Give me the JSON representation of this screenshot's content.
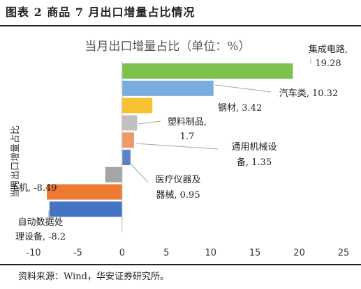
{
  "figure_title": "图表 2  商品 7 月出口增量占比情况",
  "source": "资料来源：Wind，华安证券研究所。",
  "chart_data": {
    "type": "bar",
    "orientation": "horizontal",
    "title": "当月出口增量占比（单位：%）",
    "ylabel": "当月出口增量占比",
    "xlabel": "",
    "xlim": [
      -10,
      25
    ],
    "xticks": [
      "-10",
      "-5",
      "0",
      "5",
      "10",
      "15",
      "20",
      "25"
    ],
    "grid": false,
    "legend": "none",
    "bars": [
      {
        "label_lines": [
          "集成电路,",
          "19.28"
        ],
        "value": 19.28,
        "color": "#7dc14f"
      },
      {
        "label_lines": [
          "汽车类, 10.32"
        ],
        "value": 10.32,
        "color": "#79acdf"
      },
      {
        "label_lines": [
          "钢材, 3.42"
        ],
        "value": 3.42,
        "color": "#f6c232"
      },
      {
        "label_lines": [
          "塑料制品,",
          "1.7"
        ],
        "value": 1.7,
        "color": "#c0c0c0"
      },
      {
        "label_lines": [
          "通用机械设",
          "备, 1.35"
        ],
        "value": 1.35,
        "color": "#ee9a67"
      },
      {
        "label_lines": [
          "医疗仪器及",
          "器械, 0.95"
        ],
        "value": 0.95,
        "color": "#5b82c6"
      },
      {
        "label_lines": [],
        "value": -1.9,
        "color": "#a5a5a5"
      },
      {
        "label_lines": [
          "手机, -8.49"
        ],
        "value": -8.49,
        "color": "#ec7b31"
      },
      {
        "label_lines": [
          "自动数据处",
          "理设备, -8.2"
        ],
        "value": -8.2,
        "color": "#4674c5"
      }
    ]
  }
}
